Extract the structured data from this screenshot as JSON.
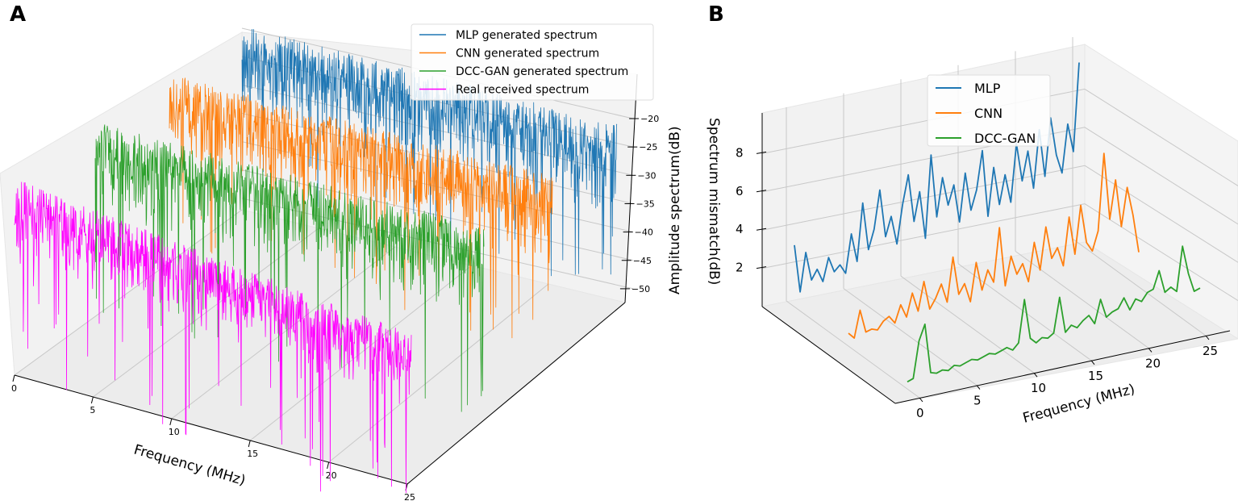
{
  "panels": {
    "a_label": "A",
    "b_label": "B"
  },
  "chart_data": [
    {
      "type": "line",
      "projection": "3d",
      "title": "",
      "xlabel": "Frequency (MHz)",
      "zlabel": "Amplitude spectrum(dB)",
      "xlim": [
        0,
        25
      ],
      "zlim": [
        -52,
        -18
      ],
      "xticks": [
        "0",
        "5",
        "10",
        "15",
        "20",
        "25"
      ],
      "zticks": [
        "−20",
        "−25",
        "−30",
        "−35",
        "−40",
        "−45",
        "−50"
      ],
      "grid": true,
      "legend_position": "top-right",
      "series": [
        {
          "name": "MLP generated spectrum",
          "color": "#1f77b4",
          "typical_range_db": [
            -35,
            -18
          ],
          "min_db": -48
        },
        {
          "name": "CNN generated spectrum",
          "color": "#ff7f0e",
          "typical_range_db": [
            -35,
            -18
          ],
          "min_db": -50
        },
        {
          "name": "DCC-GAN generated spectrum",
          "color": "#2ca02c",
          "typical_range_db": [
            -35,
            -18
          ],
          "min_db": -52
        },
        {
          "name": "Real received spectrum",
          "color": "#ff00ff",
          "typical_range_db": [
            -34,
            -19
          ],
          "min_db": -54
        }
      ]
    },
    {
      "type": "line",
      "projection": "3d",
      "title": "",
      "xlabel": "Frequency (MHz)",
      "zlabel": "Spectrum mismatch(dB)",
      "xlim": [
        0,
        25
      ],
      "zlim": [
        0,
        9.8
      ],
      "xticks": [
        "0",
        "5",
        "10",
        "15",
        "20",
        "25"
      ],
      "zticks": [
        "8",
        "6",
        "4",
        "2"
      ],
      "grid": true,
      "legend_position": "top-center",
      "x_step": 0.5,
      "series": [
        {
          "name": "MLP",
          "color": "#1f77b4",
          "values": [
            3,
            0.5,
            2.5,
            1,
            1.5,
            0.8,
            2,
            1.2,
            1.5,
            1,
            3,
            1.5,
            4.5,
            2,
            3,
            5,
            2.5,
            3.5,
            2,
            4,
            5.5,
            3,
            4.5,
            2,
            6.3,
            3,
            5,
            3.5,
            4.5,
            2.5,
            5,
            3,
            4,
            6,
            2.5,
            5,
            3,
            4.5,
            3,
            6,
            4,
            5.5,
            3.5,
            6.5,
            4,
            7,
            5,
            4,
            6.5,
            5,
            9.6
          ]
        },
        {
          "name": "CNN",
          "color": "#ff7f0e",
          "values": [
            0.5,
            0.2,
            1.6,
            0.4,
            0.5,
            0.4,
            0.8,
            1,
            0.6,
            1.5,
            0.8,
            2,
            1,
            2.5,
            1,
            1.5,
            2.2,
            1.2,
            3.5,
            1.5,
            2,
            1,
            3,
            1.5,
            2.5,
            1.8,
            4.6,
            1.5,
            3,
            2,
            2.5,
            1.5,
            3.5,
            2,
            4.2,
            2.5,
            3,
            2,
            4.5,
            2.5,
            5,
            3,
            2.5,
            3.5,
            7.5,
            4,
            6,
            3.5,
            5.5,
            4,
            2
          ]
        },
        {
          "name": "DCC-GAN",
          "color": "#2ca02c",
          "values": [
            0.2,
            0.3,
            2.2,
            3,
            0.4,
            0.3,
            0.4,
            0.3,
            0.5,
            0.4,
            0.5,
            0.6,
            0.5,
            0.6,
            0.7,
            0.6,
            0.7,
            0.8,
            0.6,
            0.9,
            3.1,
            1,
            0.7,
            0.9,
            0.8,
            1,
            2.8,
            0.9,
            1.2,
            1,
            1.3,
            1.5,
            1,
            2.2,
            1.2,
            1.4,
            1.5,
            2,
            1.3,
            1.8,
            1.6,
            2,
            2.1,
            3,
            1.8,
            2,
            1.7,
            4,
            2.5,
            1.5,
            1.6
          ]
        }
      ]
    }
  ]
}
